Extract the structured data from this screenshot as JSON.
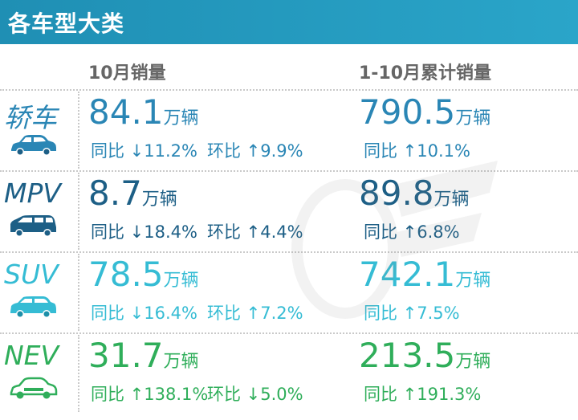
{
  "header": {
    "title": "各车型大类"
  },
  "columns": {
    "month": "10月销量",
    "cumulative": "1-10月累计销量"
  },
  "unit": "万辆",
  "rows": [
    {
      "name": "轿车",
      "color": "#2a86b5",
      "month": {
        "value": "84.1",
        "yoy": "同比 ↓11.2%",
        "mom": "环比 ↑9.9%"
      },
      "cumulative": {
        "value": "790.5",
        "yoy": "同比 ↑10.1%"
      }
    },
    {
      "name": "MPV",
      "color": "#1d5f86",
      "month": {
        "value": "8.7",
        "yoy": "同比 ↓18.4%",
        "mom": "环比 ↑4.4%"
      },
      "cumulative": {
        "value": "89.8",
        "yoy": "同比 ↑6.8%"
      }
    },
    {
      "name": "SUV",
      "color": "#35bcd4",
      "month": {
        "value": "78.5",
        "yoy": "同比 ↓16.4%",
        "mom": "环比 ↑7.2%"
      },
      "cumulative": {
        "value": "742.1",
        "yoy": "同比 ↑7.5%"
      }
    },
    {
      "name": "NEV",
      "color": "#2fae5a",
      "month": {
        "value": "31.7",
        "yoy": "同比 ↑138.1%",
        "mom": "环比 ↓5.0%"
      },
      "cumulative": {
        "value": "213.5",
        "yoy": "同比 ↑191.3%"
      }
    }
  ]
}
